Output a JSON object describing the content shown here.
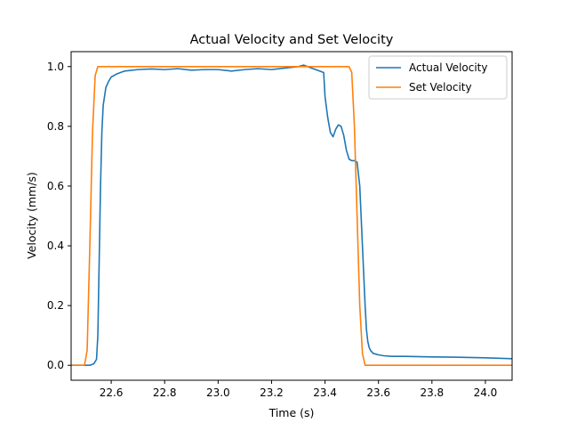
{
  "chart_data": {
    "type": "line",
    "title": "Actual Velocity and Set Velocity",
    "xlabel": "Time (s)",
    "ylabel": "Velocity (mm/s)",
    "xlim": [
      22.45,
      24.1
    ],
    "ylim": [
      -0.05,
      1.05
    ],
    "xticks": [
      22.6,
      22.8,
      23.0,
      23.2,
      23.4,
      23.6,
      23.8,
      24.0
    ],
    "xtick_labels": [
      "22.6",
      "22.8",
      "23.0",
      "23.2",
      "23.4",
      "23.6",
      "23.8",
      "24.0"
    ],
    "yticks": [
      0.0,
      0.2,
      0.4,
      0.6,
      0.8,
      1.0
    ],
    "ytick_labels": [
      "0.0",
      "0.2",
      "0.4",
      "0.6",
      "0.8",
      "1.0"
    ],
    "grid": false,
    "legend_position": "top-right",
    "series": [
      {
        "name": "Actual Velocity",
        "color": "#1f77b4",
        "x": [
          22.45,
          22.52,
          22.535,
          22.545,
          22.55,
          22.555,
          22.56,
          22.565,
          22.57,
          22.58,
          22.59,
          22.6,
          22.62,
          22.65,
          22.7,
          22.75,
          22.8,
          22.85,
          22.9,
          22.95,
          23.0,
          23.05,
          23.1,
          23.15,
          23.2,
          23.25,
          23.3,
          23.32,
          23.35,
          23.38,
          23.395,
          23.4,
          23.41,
          23.42,
          23.43,
          23.44,
          23.45,
          23.46,
          23.47,
          23.48,
          23.49,
          23.5,
          23.51,
          23.52,
          23.53,
          23.535,
          23.54,
          23.545,
          23.55,
          23.555,
          23.56,
          23.565,
          23.57,
          23.58,
          23.6,
          23.62,
          23.65,
          23.7,
          23.8,
          23.9,
          24.0,
          24.1
        ],
        "y": [
          0.0,
          0.0,
          0.005,
          0.02,
          0.1,
          0.35,
          0.6,
          0.78,
          0.87,
          0.93,
          0.95,
          0.965,
          0.975,
          0.985,
          0.99,
          0.992,
          0.99,
          0.993,
          0.988,
          0.99,
          0.99,
          0.985,
          0.99,
          0.993,
          0.99,
          0.995,
          1.0,
          1.005,
          0.995,
          0.985,
          0.98,
          0.9,
          0.83,
          0.78,
          0.765,
          0.79,
          0.805,
          0.8,
          0.77,
          0.72,
          0.69,
          0.685,
          0.685,
          0.68,
          0.6,
          0.5,
          0.4,
          0.3,
          0.2,
          0.12,
          0.08,
          0.06,
          0.05,
          0.04,
          0.035,
          0.032,
          0.03,
          0.03,
          0.028,
          0.027,
          0.025,
          0.022
        ]
      },
      {
        "name": "Set Velocity",
        "color": "#ff7f0e",
        "x": [
          22.45,
          22.5,
          22.51,
          22.52,
          22.53,
          22.54,
          22.55,
          23.49,
          23.5,
          23.51,
          23.52,
          23.53,
          23.54,
          23.55,
          24.1
        ],
        "y": [
          0.0,
          0.0,
          0.05,
          0.4,
          0.78,
          0.97,
          1.0,
          1.0,
          0.98,
          0.8,
          0.5,
          0.2,
          0.04,
          0.0,
          0.0
        ]
      }
    ]
  }
}
